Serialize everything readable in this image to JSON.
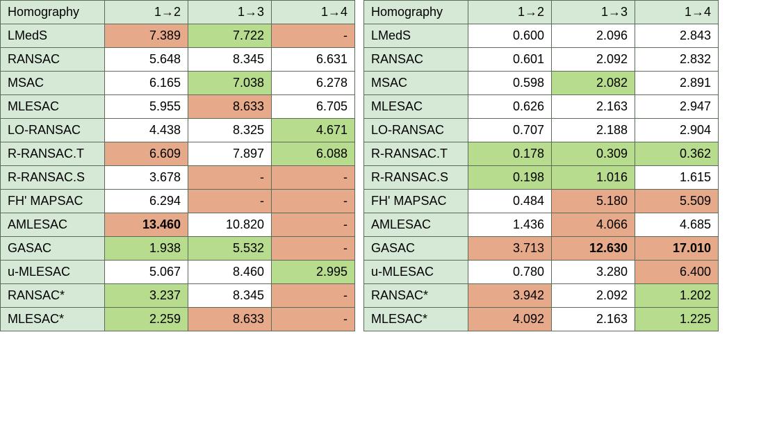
{
  "colors": {
    "header_bg": "#d6e9d6",
    "label_bg": "#d6e9d6",
    "white": "#ffffff",
    "green": "#b8dc8e",
    "orange": "#e6a98a",
    "border": "#5a6b5a"
  },
  "col_widths": {
    "label": 150,
    "num": 120
  },
  "headers": [
    "Homography",
    "1→2",
    "1→3",
    "1→4"
  ],
  "row_labels": [
    "LMedS",
    "RANSAC",
    "MSAC",
    "MLESAC",
    "LO-RANSAC",
    "R-RANSAC.T",
    "R-RANSAC.S",
    "FH' MAPSAC",
    "AMLESAC",
    "GASAC",
    "u-MLESAC",
    "RANSAC*",
    "MLESAC*"
  ],
  "left": {
    "rows": [
      [
        {
          "v": "7.389",
          "c": "orange"
        },
        {
          "v": "7.722",
          "c": "green"
        },
        {
          "v": "-",
          "c": "orange"
        }
      ],
      [
        {
          "v": "5.648",
          "c": "white"
        },
        {
          "v": "8.345",
          "c": "white"
        },
        {
          "v": "6.631",
          "c": "white"
        }
      ],
      [
        {
          "v": "6.165",
          "c": "white"
        },
        {
          "v": "7.038",
          "c": "green"
        },
        {
          "v": "6.278",
          "c": "white"
        }
      ],
      [
        {
          "v": "5.955",
          "c": "white"
        },
        {
          "v": "8.633",
          "c": "orange"
        },
        {
          "v": "6.705",
          "c": "white"
        }
      ],
      [
        {
          "v": "4.438",
          "c": "white"
        },
        {
          "v": "8.325",
          "c": "white"
        },
        {
          "v": "4.671",
          "c": "green"
        }
      ],
      [
        {
          "v": "6.609",
          "c": "orange"
        },
        {
          "v": "7.897",
          "c": "white"
        },
        {
          "v": "6.088",
          "c": "green"
        }
      ],
      [
        {
          "v": "3.678",
          "c": "white"
        },
        {
          "v": "-",
          "c": "orange"
        },
        {
          "v": "-",
          "c": "orange"
        }
      ],
      [
        {
          "v": "6.294",
          "c": "white"
        },
        {
          "v": "-",
          "c": "orange"
        },
        {
          "v": "-",
          "c": "orange"
        }
      ],
      [
        {
          "v": "13.460",
          "c": "orange",
          "b": true
        },
        {
          "v": "10.820",
          "c": "white"
        },
        {
          "v": "-",
          "c": "orange"
        }
      ],
      [
        {
          "v": "1.938",
          "c": "green"
        },
        {
          "v": "5.532",
          "c": "green"
        },
        {
          "v": "-",
          "c": "orange"
        }
      ],
      [
        {
          "v": "5.067",
          "c": "white"
        },
        {
          "v": "8.460",
          "c": "white"
        },
        {
          "v": "2.995",
          "c": "green"
        }
      ],
      [
        {
          "v": "3.237",
          "c": "green"
        },
        {
          "v": "8.345",
          "c": "white"
        },
        {
          "v": "-",
          "c": "orange"
        }
      ],
      [
        {
          "v": "2.259",
          "c": "green"
        },
        {
          "v": "8.633",
          "c": "orange"
        },
        {
          "v": "-",
          "c": "orange"
        }
      ]
    ]
  },
  "right": {
    "rows": [
      [
        {
          "v": "0.600",
          "c": "white"
        },
        {
          "v": "2.096",
          "c": "white"
        },
        {
          "v": "2.843",
          "c": "white"
        }
      ],
      [
        {
          "v": "0.601",
          "c": "white"
        },
        {
          "v": "2.092",
          "c": "white"
        },
        {
          "v": "2.832",
          "c": "white"
        }
      ],
      [
        {
          "v": "0.598",
          "c": "white"
        },
        {
          "v": "2.082",
          "c": "green"
        },
        {
          "v": "2.891",
          "c": "white"
        }
      ],
      [
        {
          "v": "0.626",
          "c": "white"
        },
        {
          "v": "2.163",
          "c": "white"
        },
        {
          "v": "2.947",
          "c": "white"
        }
      ],
      [
        {
          "v": "0.707",
          "c": "white"
        },
        {
          "v": "2.188",
          "c": "white"
        },
        {
          "v": "2.904",
          "c": "white"
        }
      ],
      [
        {
          "v": "0.178",
          "c": "green"
        },
        {
          "v": "0.309",
          "c": "green"
        },
        {
          "v": "0.362",
          "c": "green"
        }
      ],
      [
        {
          "v": "0.198",
          "c": "green"
        },
        {
          "v": "1.016",
          "c": "green"
        },
        {
          "v": "1.615",
          "c": "white"
        }
      ],
      [
        {
          "v": "0.484",
          "c": "white"
        },
        {
          "v": "5.180",
          "c": "orange"
        },
        {
          "v": "5.509",
          "c": "orange"
        }
      ],
      [
        {
          "v": "1.436",
          "c": "white"
        },
        {
          "v": "4.066",
          "c": "orange"
        },
        {
          "v": "4.685",
          "c": "white"
        }
      ],
      [
        {
          "v": "3.713",
          "c": "orange"
        },
        {
          "v": "12.630",
          "c": "orange",
          "b": true
        },
        {
          "v": "17.010",
          "c": "orange",
          "b": true
        }
      ],
      [
        {
          "v": "0.780",
          "c": "white"
        },
        {
          "v": "3.280",
          "c": "white"
        },
        {
          "v": "6.400",
          "c": "orange"
        }
      ],
      [
        {
          "v": "3.942",
          "c": "orange"
        },
        {
          "v": "2.092",
          "c": "white"
        },
        {
          "v": "1.202",
          "c": "green"
        }
      ],
      [
        {
          "v": "4.092",
          "c": "orange"
        },
        {
          "v": "2.163",
          "c": "white"
        },
        {
          "v": "1.225",
          "c": "green"
        }
      ]
    ]
  }
}
